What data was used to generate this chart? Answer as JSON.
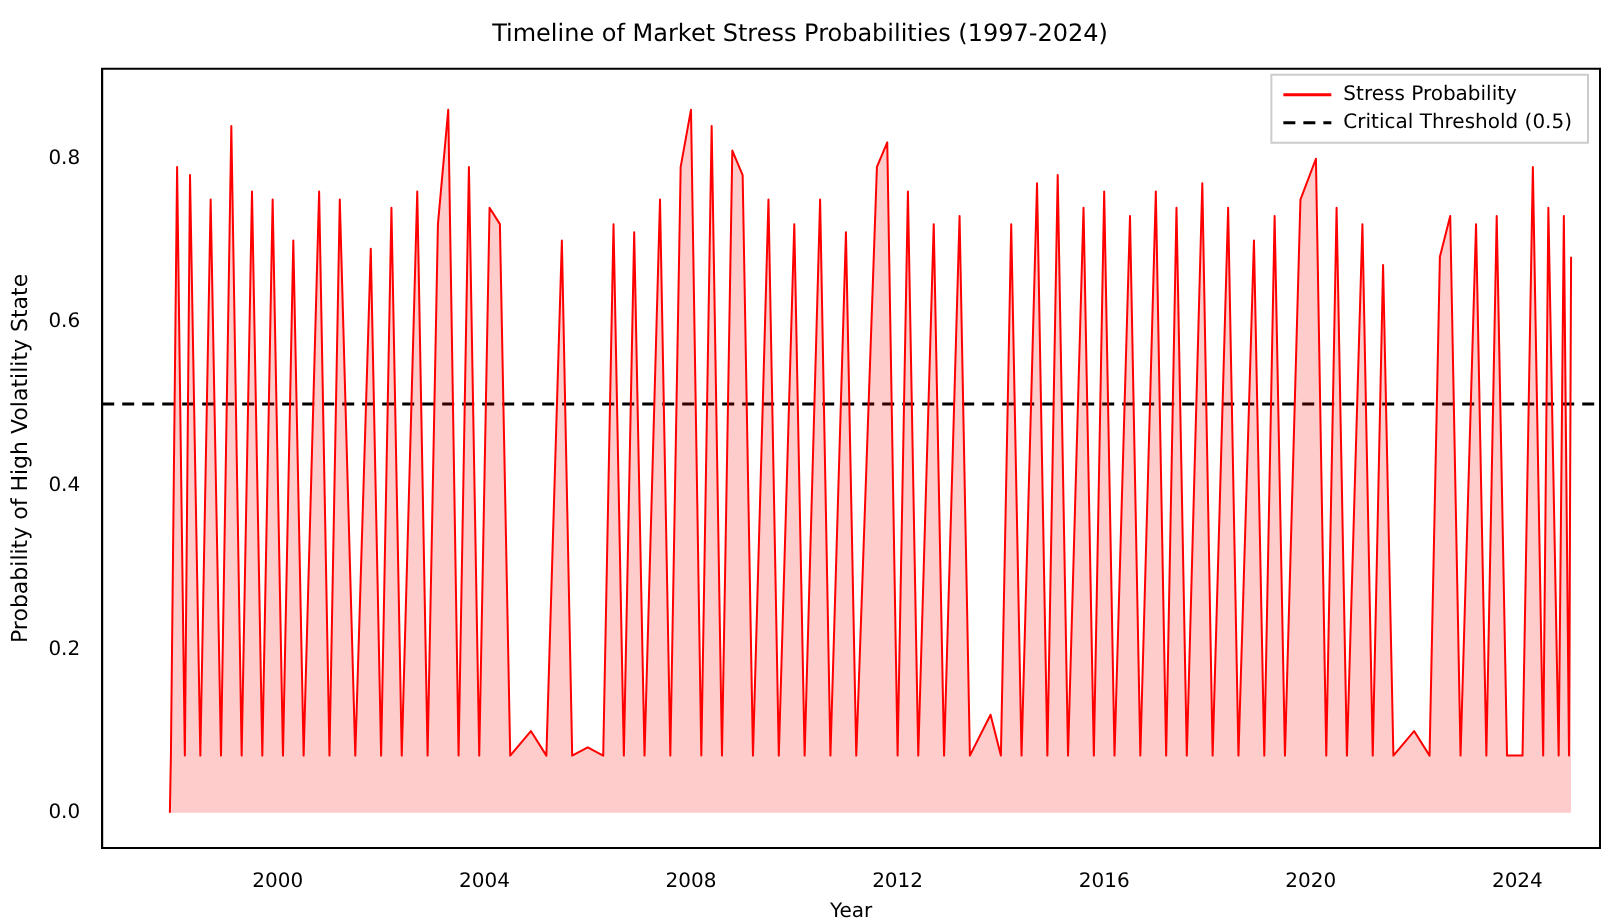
{
  "chart_data": {
    "type": "area",
    "title": "Timeline of Market Stress Probabilities (1997-2024)",
    "xlabel": "Year",
    "ylabel": "Probability of High Volatility State",
    "x": [
      1997.91,
      1997.93,
      1998.05,
      1998.2,
      1998.3,
      1998.5,
      1998.7,
      1998.9,
      1999.1,
      1999.3,
      1999.5,
      1999.7,
      1999.9,
      2000.1,
      2000.3,
      2000.5,
      2000.8,
      2001.0,
      2001.2,
      2001.5,
      2001.8,
      2002.0,
      2002.2,
      2002.4,
      2002.7,
      2002.9,
      2003.1,
      2003.3,
      2003.5,
      2003.7,
      2003.9,
      2004.1,
      2004.3,
      2004.5,
      2004.9,
      2005.2,
      2005.5,
      2005.7,
      2006.0,
      2006.3,
      2006.5,
      2006.7,
      2006.9,
      2007.1,
      2007.4,
      2007.6,
      2007.8,
      2008.0,
      2008.2,
      2008.4,
      2008.6,
      2008.8,
      2009.0,
      2009.2,
      2009.5,
      2009.7,
      2010.0,
      2010.2,
      2010.5,
      2010.7,
      2011.0,
      2011.2,
      2011.6,
      2011.8,
      2012.0,
      2012.2,
      2012.4,
      2012.7,
      2012.9,
      2013.2,
      2013.4,
      2013.8,
      2014.0,
      2014.2,
      2014.4,
      2014.7,
      2014.9,
      2015.1,
      2015.3,
      2015.6,
      2015.8,
      2016.0,
      2016.2,
      2016.5,
      2016.7,
      2017.0,
      2017.2,
      2017.4,
      2017.6,
      2017.9,
      2018.1,
      2018.4,
      2018.6,
      2018.9,
      2019.1,
      2019.3,
      2019.5,
      2019.8,
      2020.1,
      2020.3,
      2020.5,
      2020.7,
      2021.0,
      2021.2,
      2021.4,
      2021.6,
      2022.0,
      2022.3,
      2022.5,
      2022.7,
      2022.9,
      2023.2,
      2023.4,
      2023.6,
      2023.8,
      2024.1,
      2024.3,
      2024.5,
      2024.6,
      2024.8,
      2024.9,
      2025.0,
      2025.04
    ],
    "series": [
      {
        "name": "Stress Probability",
        "color": "#ff0000",
        "values": [
          0,
          0.07,
          0.79,
          0.07,
          0.78,
          0.07,
          0.75,
          0.07,
          0.84,
          0.07,
          0.76,
          0.07,
          0.75,
          0.07,
          0.7,
          0.07,
          0.76,
          0.07,
          0.75,
          0.07,
          0.69,
          0.07,
          0.74,
          0.07,
          0.76,
          0.07,
          0.72,
          0.86,
          0.07,
          0.79,
          0.07,
          0.74,
          0.72,
          0.07,
          0.1,
          0.07,
          0.7,
          0.07,
          0.08,
          0.07,
          0.72,
          0.07,
          0.71,
          0.07,
          0.75,
          0.07,
          0.79,
          0.86,
          0.07,
          0.84,
          0.07,
          0.81,
          0.78,
          0.07,
          0.75,
          0.07,
          0.72,
          0.07,
          0.75,
          0.07,
          0.71,
          0.07,
          0.79,
          0.82,
          0.07,
          0.76,
          0.07,
          0.72,
          0.07,
          0.73,
          0.07,
          0.12,
          0.07,
          0.72,
          0.07,
          0.77,
          0.07,
          0.78,
          0.07,
          0.74,
          0.07,
          0.76,
          0.07,
          0.73,
          0.07,
          0.76,
          0.07,
          0.74,
          0.07,
          0.77,
          0.07,
          0.74,
          0.07,
          0.7,
          0.07,
          0.73,
          0.07,
          0.75,
          0.8,
          0.07,
          0.74,
          0.07,
          0.72,
          0.07,
          0.67,
          0.07,
          0.1,
          0.07,
          0.68,
          0.73,
          0.07,
          0.72,
          0.07,
          0.73,
          0.07,
          0.07,
          0.79,
          0.07,
          0.74,
          0.07,
          0.73,
          0.07,
          0.68
        ]
      }
    ],
    "ref_lines": [
      {
        "axis": "y",
        "value": 0.5,
        "label": "Critical Threshold (0.5)",
        "color": "#000000",
        "line_style": "dashed"
      }
    ],
    "xlim": [
      1996.6,
      2025.6
    ],
    "xticks": [
      2000,
      2004,
      2008,
      2012,
      2016,
      2020,
      2024
    ],
    "ylim": [
      -0.043,
      0.91
    ],
    "yticks": [
      {
        "value": 0,
        "label": "0.0"
      },
      {
        "value": 0.2,
        "label": "0.2"
      },
      {
        "value": 0.4,
        "label": "0.4"
      },
      {
        "value": 0.6,
        "label": "0.6"
      },
      {
        "value": 0.8,
        "label": "0.8"
      }
    ],
    "grid": false,
    "legend": "top right"
  }
}
